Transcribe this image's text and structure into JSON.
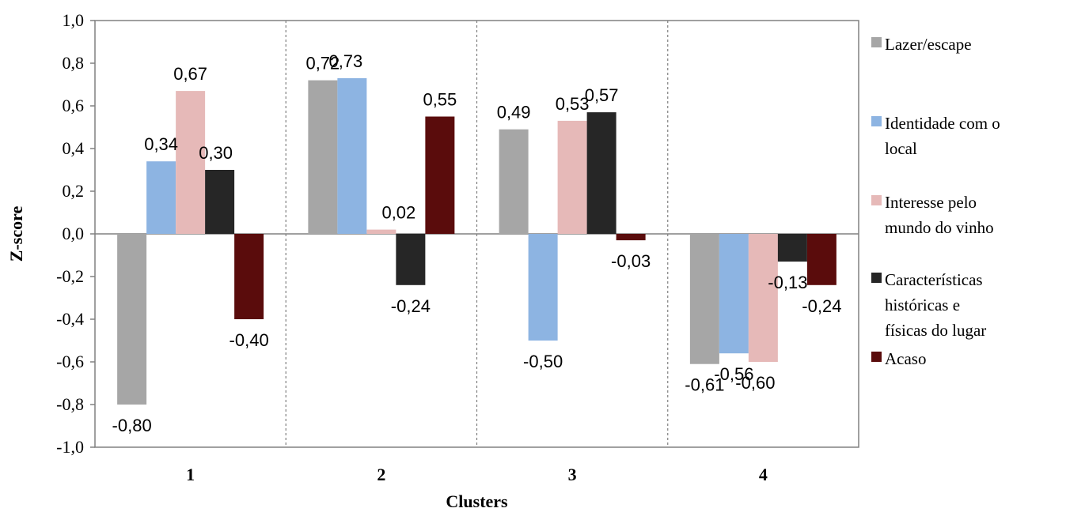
{
  "chart_data": {
    "type": "bar",
    "categories": [
      "1",
      "2",
      "3",
      "4"
    ],
    "series": [
      {
        "name": "Lazer/escape",
        "color": "#a6a6a6",
        "values": [
          -0.8,
          0.72,
          0.49,
          -0.61
        ],
        "labels": [
          "-0,80",
          "0,72",
          "0,49",
          "-0,61"
        ]
      },
      {
        "name": "Identidade com o local",
        "color": "#8db4e2",
        "values": [
          0.34,
          0.73,
          -0.5,
          -0.56
        ],
        "labels": [
          "0,34",
          "0,73",
          "-0,50",
          "-0,56"
        ]
      },
      {
        "name": "Interesse pelo mundo do vinho",
        "color": "#e6b9b8",
        "values": [
          0.67,
          0.02,
          0.53,
          -0.6
        ],
        "labels": [
          "0,67",
          "0,02",
          "0,53",
          "-0,60"
        ]
      },
      {
        "name": "Características históricas e físicas do lugar",
        "color": "#262626",
        "values": [
          0.3,
          -0.24,
          0.57,
          -0.13
        ],
        "labels": [
          "0,30",
          "-0,24",
          "0,57",
          "-0,13"
        ]
      },
      {
        "name": "Acaso",
        "color": "#5a0c0c",
        "values": [
          -0.4,
          0.55,
          -0.03,
          -0.24
        ],
        "labels": [
          "-0,40",
          "0,55",
          "-0,03",
          "-0,24"
        ]
      }
    ],
    "xlabel": "Clusters",
    "ylabel": "Z-score",
    "ylim": [
      -1.0,
      1.0
    ],
    "yticks": [
      1.0,
      0.8,
      0.6,
      0.4,
      0.2,
      0.0,
      -0.2,
      -0.4,
      -0.6,
      -0.8,
      -1.0
    ],
    "ytick_labels": [
      "1,0",
      "0,8",
      "0,6",
      "0,4",
      "0,2",
      "0,0",
      "-0,2",
      "-0,4",
      "-0,6",
      "-0,8",
      "-1,0"
    ],
    "grid": false,
    "category_separators": "dashed",
    "legend_position": "right",
    "legend_lines": [
      [
        "Lazer/escape"
      ],
      [
        "Identidade com o",
        "local"
      ],
      [
        "Interesse pelo",
        "mundo do vinho"
      ],
      [
        "Características",
        "históricas e",
        "físicas do lugar"
      ],
      [
        "Acaso"
      ]
    ]
  }
}
